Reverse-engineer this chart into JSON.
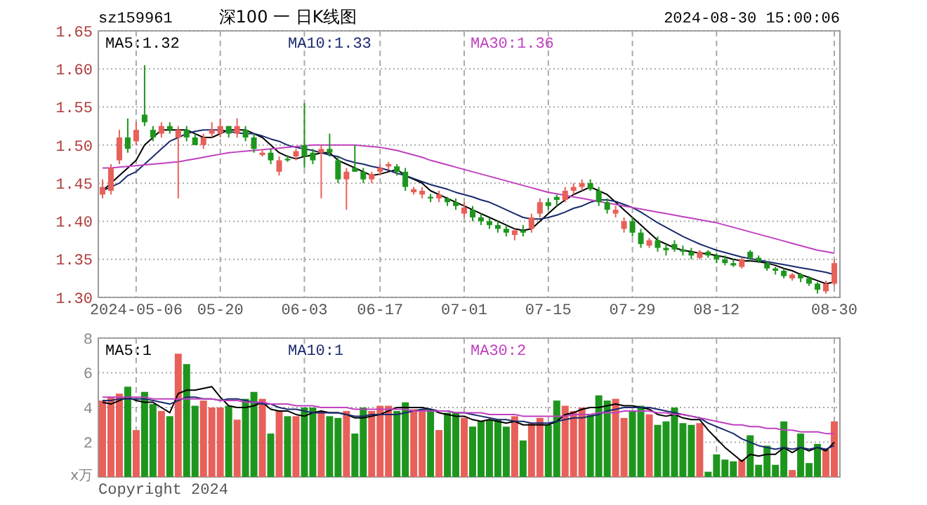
{
  "chart_data": [
    {
      "type": "candlestick",
      "title": "深100 一 日K线图",
      "subtitle": "sz159961",
      "annotations": [
        "2024-08-30 15:00:06"
      ],
      "categories": [
        null,
        null,
        null,
        null,
        "2024-05-06",
        null,
        null,
        null,
        null,
        null,
        null,
        null,
        null,
        null,
        "05-20",
        null,
        null,
        null,
        null,
        null,
        null,
        null,
        null,
        null,
        "06-03",
        null,
        null,
        null,
        null,
        null,
        null,
        null,
        null,
        "06-17",
        null,
        null,
        null,
        null,
        null,
        null,
        null,
        null,
        null,
        "07-01",
        null,
        null,
        null,
        null,
        null,
        null,
        null,
        null,
        null,
        "07-15",
        null,
        null,
        null,
        null,
        null,
        null,
        null,
        null,
        null,
        "07-29",
        null,
        null,
        null,
        null,
        null,
        null,
        null,
        null,
        null,
        "08-12",
        null,
        null,
        null,
        null,
        null,
        null,
        null,
        null,
        null,
        null,
        null,
        null,
        null,
        "08-30"
      ],
      "ohlc": [
        [
          1.435,
          1.455,
          1.43,
          1.445
        ],
        [
          1.44,
          1.475,
          1.435,
          1.47
        ],
        [
          1.48,
          1.52,
          1.475,
          1.51
        ],
        [
          1.51,
          1.535,
          1.49,
          1.495
        ],
        [
          1.505,
          1.53,
          1.5,
          1.52
        ],
        [
          1.54,
          1.605,
          1.525,
          1.53
        ],
        [
          1.52,
          1.525,
          1.505,
          1.51
        ],
        [
          1.515,
          1.53,
          1.51,
          1.525
        ],
        [
          1.525,
          1.53,
          1.515,
          1.52
        ],
        [
          1.51,
          1.525,
          1.43,
          1.52
        ],
        [
          1.52,
          1.525,
          1.505,
          1.51
        ],
        [
          1.51,
          1.515,
          1.5,
          1.5
        ],
        [
          1.5,
          1.515,
          1.495,
          1.51
        ],
        [
          1.515,
          1.53,
          1.51,
          1.52
        ],
        [
          1.515,
          1.535,
          1.51,
          1.525
        ],
        [
          1.525,
          1.525,
          1.51,
          1.515
        ],
        [
          1.515,
          1.535,
          1.51,
          1.525
        ],
        [
          1.52,
          1.525,
          1.505,
          1.51
        ],
        [
          1.51,
          1.515,
          1.49,
          1.495
        ],
        [
          1.487,
          1.495,
          1.485,
          1.49
        ],
        [
          1.49,
          1.495,
          1.475,
          1.48
        ],
        [
          1.465,
          1.485,
          1.46,
          1.48
        ],
        [
          1.482,
          1.487,
          1.478,
          1.48
        ],
        [
          1.485,
          1.495,
          1.48,
          1.492
        ],
        [
          1.5,
          1.555,
          1.47,
          1.485
        ],
        [
          1.49,
          1.495,
          1.475,
          1.48
        ],
        [
          1.49,
          1.5,
          1.43,
          1.495
        ],
        [
          1.495,
          1.515,
          1.485,
          1.49
        ],
        [
          1.48,
          1.485,
          1.45,
          1.455
        ],
        [
          1.455,
          1.47,
          1.415,
          1.465
        ],
        [
          1.47,
          1.5,
          1.465,
          1.465
        ],
        [
          1.465,
          1.47,
          1.45,
          1.455
        ],
        [
          1.455,
          1.465,
          1.45,
          1.462
        ],
        [
          1.465,
          1.475,
          1.46,
          1.47
        ],
        [
          1.472,
          1.478,
          1.468,
          1.475
        ],
        [
          1.472,
          1.475,
          1.46,
          1.465
        ],
        [
          1.465,
          1.47,
          1.44,
          1.445
        ],
        [
          1.438,
          1.445,
          1.435,
          1.442
        ],
        [
          1.435,
          1.445,
          1.43,
          1.44
        ],
        [
          1.432,
          1.436,
          1.425,
          1.43
        ],
        [
          1.43,
          1.44,
          1.425,
          1.435
        ],
        [
          1.43,
          1.432,
          1.42,
          1.425
        ],
        [
          1.425,
          1.43,
          1.415,
          1.42
        ],
        [
          1.41,
          1.425,
          1.405,
          1.418
        ],
        [
          1.415,
          1.42,
          1.4,
          1.405
        ],
        [
          1.405,
          1.41,
          1.395,
          1.4
        ],
        [
          1.4,
          1.405,
          1.39,
          1.395
        ],
        [
          1.395,
          1.4,
          1.385,
          1.39
        ],
        [
          1.39,
          1.395,
          1.38,
          1.385
        ],
        [
          1.382,
          1.39,
          1.375,
          1.388
        ],
        [
          1.388,
          1.395,
          1.38,
          1.385
        ],
        [
          1.39,
          1.41,
          1.385,
          1.405
        ],
        [
          1.41,
          1.43,
          1.405,
          1.425
        ],
        [
          1.425,
          1.43,
          1.415,
          1.42
        ],
        [
          1.432,
          1.435,
          1.42,
          1.428
        ],
        [
          1.428,
          1.445,
          1.425,
          1.44
        ],
        [
          1.44,
          1.45,
          1.435,
          1.445
        ],
        [
          1.445,
          1.455,
          1.44,
          1.45
        ],
        [
          1.45,
          1.455,
          1.44,
          1.442
        ],
        [
          1.44,
          1.445,
          1.42,
          1.425
        ],
        [
          1.425,
          1.43,
          1.41,
          1.415
        ],
        [
          1.41,
          1.42,
          1.405,
          1.415
        ],
        [
          1.39,
          1.405,
          1.385,
          1.4
        ],
        [
          1.4,
          1.405,
          1.38,
          1.385
        ],
        [
          1.385,
          1.39,
          1.365,
          1.37
        ],
        [
          1.368,
          1.378,
          1.365,
          1.375
        ],
        [
          1.375,
          1.38,
          1.36,
          1.365
        ],
        [
          1.365,
          1.37,
          1.355,
          1.362
        ],
        [
          1.37,
          1.375,
          1.36,
          1.363
        ],
        [
          1.363,
          1.368,
          1.355,
          1.36
        ],
        [
          1.36,
          1.365,
          1.35,
          1.355
        ],
        [
          1.352,
          1.362,
          1.35,
          1.36
        ],
        [
          1.36,
          1.362,
          1.352,
          1.355
        ],
        [
          1.355,
          1.358,
          1.345,
          1.35
        ],
        [
          1.35,
          1.355,
          1.342,
          1.345
        ],
        [
          1.345,
          1.35,
          1.34,
          1.342
        ],
        [
          1.34,
          1.352,
          1.338,
          1.35
        ],
        [
          1.36,
          1.362,
          1.348,
          1.352
        ],
        [
          1.352,
          1.355,
          1.345,
          1.348
        ],
        [
          1.345,
          1.348,
          1.335,
          1.338
        ],
        [
          1.338,
          1.34,
          1.33,
          1.335
        ],
        [
          1.335,
          1.338,
          1.325,
          1.328
        ],
        [
          1.325,
          1.332,
          1.322,
          1.33
        ],
        [
          1.33,
          1.332,
          1.32,
          1.325
        ],
        [
          1.325,
          1.328,
          1.315,
          1.318
        ],
        [
          1.318,
          1.32,
          1.305,
          1.31
        ],
        [
          1.308,
          1.322,
          1.305,
          1.318
        ],
        [
          1.318,
          1.35,
          1.315,
          1.345
        ]
      ],
      "colors": [
        "#e8605a",
        "#e8605a",
        "#e8605a",
        "#1e961e",
        "#e8605a",
        "#1e961e",
        "#1e961e",
        "#e8605a",
        "#1e961e",
        "#e8605a",
        "#1e961e",
        "#1e961e",
        "#e8605a",
        "#e8605a",
        "#e8605a",
        "#1e961e",
        "#e8605a",
        "#1e961e",
        "#1e961e",
        "#e8605a",
        "#1e961e",
        "#e8605a",
        "#1e961e",
        "#e8605a",
        "#1e961e",
        "#1e961e",
        "#e8605a",
        "#1e961e",
        "#1e961e",
        "#e8605a",
        "#1e961e",
        "#1e961e",
        "#e8605a",
        "#e8605a",
        "#e8605a",
        "#1e961e",
        "#1e961e",
        "#e8605a",
        "#e8605a",
        "#1e961e",
        "#e8605a",
        "#1e961e",
        "#1e961e",
        "#e8605a",
        "#1e961e",
        "#1e961e",
        "#1e961e",
        "#1e961e",
        "#1e961e",
        "#e8605a",
        "#1e961e",
        "#e8605a",
        "#e8605a",
        "#1e961e",
        "#1e961e",
        "#e8605a",
        "#e8605a",
        "#e8605a",
        "#1e961e",
        "#1e961e",
        "#1e961e",
        "#e8605a",
        "#e8605a",
        "#1e961e",
        "#1e961e",
        "#e8605a",
        "#1e961e",
        "#1e961e",
        "#1e961e",
        "#1e961e",
        "#1e961e",
        "#e8605a",
        "#1e961e",
        "#1e961e",
        "#1e961e",
        "#1e961e",
        "#e8605a",
        "#1e961e",
        "#1e961e",
        "#1e961e",
        "#1e961e",
        "#1e961e",
        "#e8605a",
        "#1e961e",
        "#1e961e",
        "#1e961e",
        "#e8605a",
        "#e8605a"
      ],
      "series": [
        {
          "type": "line",
          "name": "MA5:1.32",
          "color": "#000000",
          "values": [
            1.44,
            1.45,
            1.46,
            1.47,
            1.48,
            1.5,
            1.51,
            1.52,
            1.52,
            1.52,
            1.52,
            1.515,
            1.51,
            1.51,
            1.515,
            1.52,
            1.52,
            1.52,
            1.515,
            1.51,
            1.5,
            1.49,
            1.485,
            1.482,
            1.485,
            1.487,
            1.49,
            1.49,
            1.48,
            1.475,
            1.47,
            1.465,
            1.46,
            1.462,
            1.465,
            1.468,
            1.46,
            1.455,
            1.45,
            1.44,
            1.435,
            1.43,
            1.425,
            1.42,
            1.415,
            1.41,
            1.405,
            1.4,
            1.395,
            1.39,
            1.388,
            1.39,
            1.4,
            1.41,
            1.42,
            1.428,
            1.435,
            1.44,
            1.445,
            1.44,
            1.435,
            1.425,
            1.415,
            1.405,
            1.395,
            1.385,
            1.375,
            1.37,
            1.365,
            1.362,
            1.36,
            1.358,
            1.357,
            1.355,
            1.353,
            1.35,
            1.348,
            1.348,
            1.347,
            1.345,
            1.342,
            1.338,
            1.335,
            1.33,
            1.326,
            1.322,
            1.318,
            1.32
          ]
        },
        {
          "type": "line",
          "name": "MA10:1.33",
          "color": "#1a2a6c",
          "values": [
            1.44,
            1.445,
            1.45,
            1.46,
            1.465,
            1.475,
            1.485,
            1.495,
            1.505,
            1.51,
            1.515,
            1.518,
            1.52,
            1.52,
            1.52,
            1.518,
            1.516,
            1.515,
            1.515,
            1.512,
            1.508,
            1.505,
            1.5,
            1.497,
            1.495,
            1.493,
            1.49,
            1.487,
            1.485,
            1.48,
            1.477,
            1.475,
            1.472,
            1.47,
            1.467,
            1.463,
            1.46,
            1.456,
            1.452,
            1.448,
            1.445,
            1.442,
            1.438,
            1.435,
            1.432,
            1.428,
            1.425,
            1.42,
            1.415,
            1.41,
            1.405,
            1.403,
            1.403,
            1.405,
            1.408,
            1.412,
            1.417,
            1.42,
            1.425,
            1.428,
            1.428,
            1.426,
            1.422,
            1.418,
            1.412,
            1.405,
            1.398,
            1.392,
            1.386,
            1.38,
            1.375,
            1.37,
            1.366,
            1.362,
            1.359,
            1.356,
            1.353,
            1.351,
            1.349,
            1.347,
            1.345,
            1.343,
            1.341,
            1.339,
            1.337,
            1.335,
            1.333,
            1.33
          ]
        },
        {
          "type": "line",
          "name": "MA30:1.36",
          "color": "#c040c0",
          "values": [
            1.47,
            1.47,
            1.471,
            1.472,
            1.473,
            1.474,
            1.475,
            1.476,
            1.477,
            1.478,
            1.48,
            1.482,
            1.484,
            1.486,
            1.488,
            1.49,
            1.491,
            1.492,
            1.493,
            1.494,
            1.495,
            1.496,
            1.497,
            1.498,
            1.499,
            1.5,
            1.5,
            1.5,
            1.5,
            1.5,
            1.5,
            1.499,
            1.498,
            1.497,
            1.495,
            1.493,
            1.49,
            1.487,
            1.484,
            1.48,
            1.477,
            1.474,
            1.471,
            1.468,
            1.465,
            1.462,
            1.459,
            1.456,
            1.453,
            1.45,
            1.447,
            1.444,
            1.441,
            1.438,
            1.436,
            1.434,
            1.432,
            1.43,
            1.428,
            1.426,
            1.424,
            1.422,
            1.42,
            1.418,
            1.416,
            1.414,
            1.412,
            1.41,
            1.408,
            1.406,
            1.404,
            1.402,
            1.4,
            1.398,
            1.395,
            1.392,
            1.389,
            1.386,
            1.383,
            1.38,
            1.377,
            1.374,
            1.371,
            1.368,
            1.365,
            1.362,
            1.36,
            1.358
          ]
        }
      ],
      "ylim": [
        1.3,
        1.65
      ],
      "yticks": [
        {
          "value": 1.3,
          "label": "1.30"
        },
        {
          "value": 1.35,
          "label": "1.35"
        },
        {
          "value": 1.4,
          "label": "1.40"
        },
        {
          "value": 1.45,
          "label": "1.45"
        },
        {
          "value": 1.5,
          "label": "1.50"
        },
        {
          "value": 1.55,
          "label": "1.55"
        },
        {
          "value": 1.6,
          "label": "1.60"
        },
        {
          "value": 1.65,
          "label": "1.65"
        }
      ],
      "grid": true,
      "legend": "top"
    },
    {
      "type": "bar",
      "ylabel": "x万",
      "annotations": [
        "Copyright 2024"
      ],
      "categories": [
        null,
        null,
        null,
        null,
        null,
        null,
        null,
        null,
        null,
        null,
        null,
        null,
        null,
        null,
        null,
        null,
        null,
        null,
        null,
        null,
        null,
        null,
        null,
        null,
        null,
        null,
        null,
        null,
        null,
        null,
        null,
        null,
        null,
        null,
        null,
        null,
        null,
        null,
        null,
        null,
        null,
        null,
        null,
        null,
        null,
        null,
        null,
        null,
        null,
        null,
        null,
        null,
        null,
        null,
        null,
        null,
        null,
        null,
        null,
        null,
        null,
        null,
        null,
        null,
        null,
        null,
        null,
        null,
        null,
        null,
        null,
        null,
        null,
        null,
        null,
        null,
        null,
        null,
        null,
        null,
        null,
        null,
        null,
        null,
        null,
        null,
        null,
        null
      ],
      "series": [
        {
          "type": "bar",
          "values": [
            4.4,
            4.6,
            4.8,
            5.2,
            2.7,
            4.9,
            4.2,
            3.8,
            3.5,
            7.1,
            6.5,
            4.1,
            4.4,
            4.0,
            4.0,
            4.1,
            3.3,
            4.5,
            4.9,
            4.5,
            2.5,
            3.8,
            3.5,
            3.5,
            4.0,
            4.0,
            3.8,
            3.5,
            3.4,
            3.8,
            2.5,
            4.0,
            3.8,
            4.1,
            4.1,
            3.8,
            4.3,
            3.9,
            3.9,
            3.9,
            2.7,
            3.7,
            3.7,
            3.4,
            2.9,
            3.2,
            3.3,
            3.3,
            2.9,
            3.5,
            2.1,
            3.1,
            3.4,
            3.0,
            4.4,
            4.1,
            3.8,
            4.0,
            3.6,
            4.7,
            4.4,
            4.5,
            3.4,
            3.8,
            4.1,
            3.6,
            3.0,
            3.2,
            4.0,
            3.1,
            3.0,
            3.1,
            0.3,
            1.3,
            1.0,
            0.9,
            1.0,
            2.4,
            0.7,
            1.8,
            0.7,
            3.2,
            0.4,
            2.5,
            0.8,
            1.9,
            1.6,
            3.2
          ],
          "colors": [
            "#e8605a",
            "#e8605a",
            "#e8605a",
            "#1e961e",
            "#e8605a",
            "#1e961e",
            "#1e961e",
            "#e8605a",
            "#1e961e",
            "#e8605a",
            "#1e961e",
            "#1e961e",
            "#e8605a",
            "#e8605a",
            "#e8605a",
            "#1e961e",
            "#e8605a",
            "#1e961e",
            "#1e961e",
            "#e8605a",
            "#1e961e",
            "#e8605a",
            "#1e961e",
            "#e8605a",
            "#1e961e",
            "#1e961e",
            "#e8605a",
            "#1e961e",
            "#1e961e",
            "#e8605a",
            "#1e961e",
            "#1e961e",
            "#e8605a",
            "#e8605a",
            "#e8605a",
            "#1e961e",
            "#1e961e",
            "#e8605a",
            "#e8605a",
            "#1e961e",
            "#e8605a",
            "#1e961e",
            "#1e961e",
            "#e8605a",
            "#1e961e",
            "#1e961e",
            "#1e961e",
            "#1e961e",
            "#1e961e",
            "#e8605a",
            "#1e961e",
            "#e8605a",
            "#e8605a",
            "#1e961e",
            "#1e961e",
            "#e8605a",
            "#e8605a",
            "#e8605a",
            "#1e961e",
            "#1e961e",
            "#1e961e",
            "#e8605a",
            "#e8605a",
            "#1e961e",
            "#1e961e",
            "#e8605a",
            "#1e961e",
            "#1e961e",
            "#1e961e",
            "#1e961e",
            "#1e961e",
            "#e8605a",
            "#1e961e",
            "#1e961e",
            "#1e961e",
            "#1e961e",
            "#e8605a",
            "#1e961e",
            "#1e961e",
            "#1e961e",
            "#1e961e",
            "#1e961e",
            "#e8605a",
            "#1e961e",
            "#1e961e",
            "#1e961e",
            "#e8605a",
            "#e8605a"
          ]
        },
        {
          "type": "line",
          "name": "MA5:1",
          "color": "#000000",
          "values": [
            4.3,
            4.2,
            4.4,
            4.6,
            4.4,
            4.3,
            4.3,
            4.0,
            3.7,
            4.8,
            5.0,
            5.0,
            5.1,
            5.2,
            4.6,
            4.1,
            4.0,
            4.0,
            4.1,
            4.3,
            3.9,
            3.8,
            3.8,
            3.6,
            3.5,
            3.7,
            3.8,
            3.7,
            3.7,
            3.6,
            3.4,
            3.4,
            3.5,
            3.6,
            3.8,
            4.0,
            4.0,
            4.0,
            4.0,
            3.9,
            3.7,
            3.6,
            3.5,
            3.5,
            3.3,
            3.2,
            3.3,
            3.2,
            3.1,
            3.2,
            3.0,
            3.0,
            3.0,
            3.0,
            3.2,
            3.6,
            3.7,
            3.9,
            4.0,
            4.0,
            4.1,
            4.2,
            4.1,
            4.1,
            4.0,
            3.9,
            3.6,
            3.5,
            3.6,
            3.4,
            3.3,
            3.3,
            2.7,
            2.2,
            1.7,
            1.3,
            0.9,
            1.3,
            1.2,
            1.3,
            1.3,
            1.7,
            1.4,
            1.7,
            1.5,
            1.7,
            1.5,
            2.0
          ]
        },
        {
          "type": "line",
          "name": "MA10:1",
          "color": "#1a2a6c",
          "values": [
            4.4,
            4.4,
            4.5,
            4.5,
            4.5,
            4.5,
            4.4,
            4.3,
            4.2,
            4.4,
            4.6,
            4.6,
            4.5,
            4.5,
            4.4,
            4.5,
            4.5,
            4.4,
            4.3,
            4.2,
            4.2,
            4.0,
            3.9,
            3.9,
            3.8,
            3.7,
            3.7,
            3.7,
            3.7,
            3.6,
            3.5,
            3.5,
            3.6,
            3.6,
            3.6,
            3.6,
            3.7,
            3.8,
            3.9,
            3.9,
            3.8,
            3.8,
            3.7,
            3.7,
            3.6,
            3.5,
            3.4,
            3.3,
            3.3,
            3.2,
            3.2,
            3.1,
            3.1,
            3.1,
            3.2,
            3.3,
            3.4,
            3.4,
            3.5,
            3.6,
            3.8,
            3.9,
            4.0,
            4.0,
            4.0,
            4.0,
            3.9,
            3.8,
            3.7,
            3.6,
            3.5,
            3.4,
            3.1,
            2.9,
            2.7,
            2.5,
            2.2,
            2.0,
            1.8,
            1.7,
            1.6,
            1.7,
            1.6,
            1.7,
            1.6,
            1.7,
            1.6,
            1.8
          ]
        },
        {
          "type": "line",
          "name": "MA30:2",
          "color": "#c040c0",
          "values": [
            4.6,
            4.6,
            4.6,
            4.6,
            4.6,
            4.6,
            4.5,
            4.5,
            4.5,
            4.5,
            4.5,
            4.5,
            4.5,
            4.5,
            4.4,
            4.4,
            4.4,
            4.3,
            4.3,
            4.3,
            4.2,
            4.2,
            4.2,
            4.1,
            4.1,
            4.1,
            4.0,
            4.0,
            4.0,
            4.0,
            3.9,
            3.9,
            3.9,
            3.9,
            3.9,
            3.9,
            3.9,
            3.8,
            3.8,
            3.8,
            3.8,
            3.8,
            3.7,
            3.7,
            3.7,
            3.7,
            3.6,
            3.6,
            3.6,
            3.6,
            3.5,
            3.5,
            3.5,
            3.5,
            3.5,
            3.5,
            3.6,
            3.6,
            3.6,
            3.7,
            3.7,
            3.7,
            3.8,
            3.8,
            3.8,
            3.8,
            3.7,
            3.7,
            3.6,
            3.6,
            3.5,
            3.4,
            3.3,
            3.2,
            3.1,
            3.0,
            3.0,
            2.9,
            2.9,
            2.8,
            2.8,
            2.7,
            2.7,
            2.6,
            2.6,
            2.6,
            2.5,
            2.5
          ]
        }
      ],
      "ylim": [
        0,
        8
      ],
      "yticks": [
        {
          "value": 0,
          "label": null
        },
        2,
        4,
        6,
        8
      ],
      "grid": true,
      "legend": "top",
      "tick_labels": "y"
    }
  ]
}
